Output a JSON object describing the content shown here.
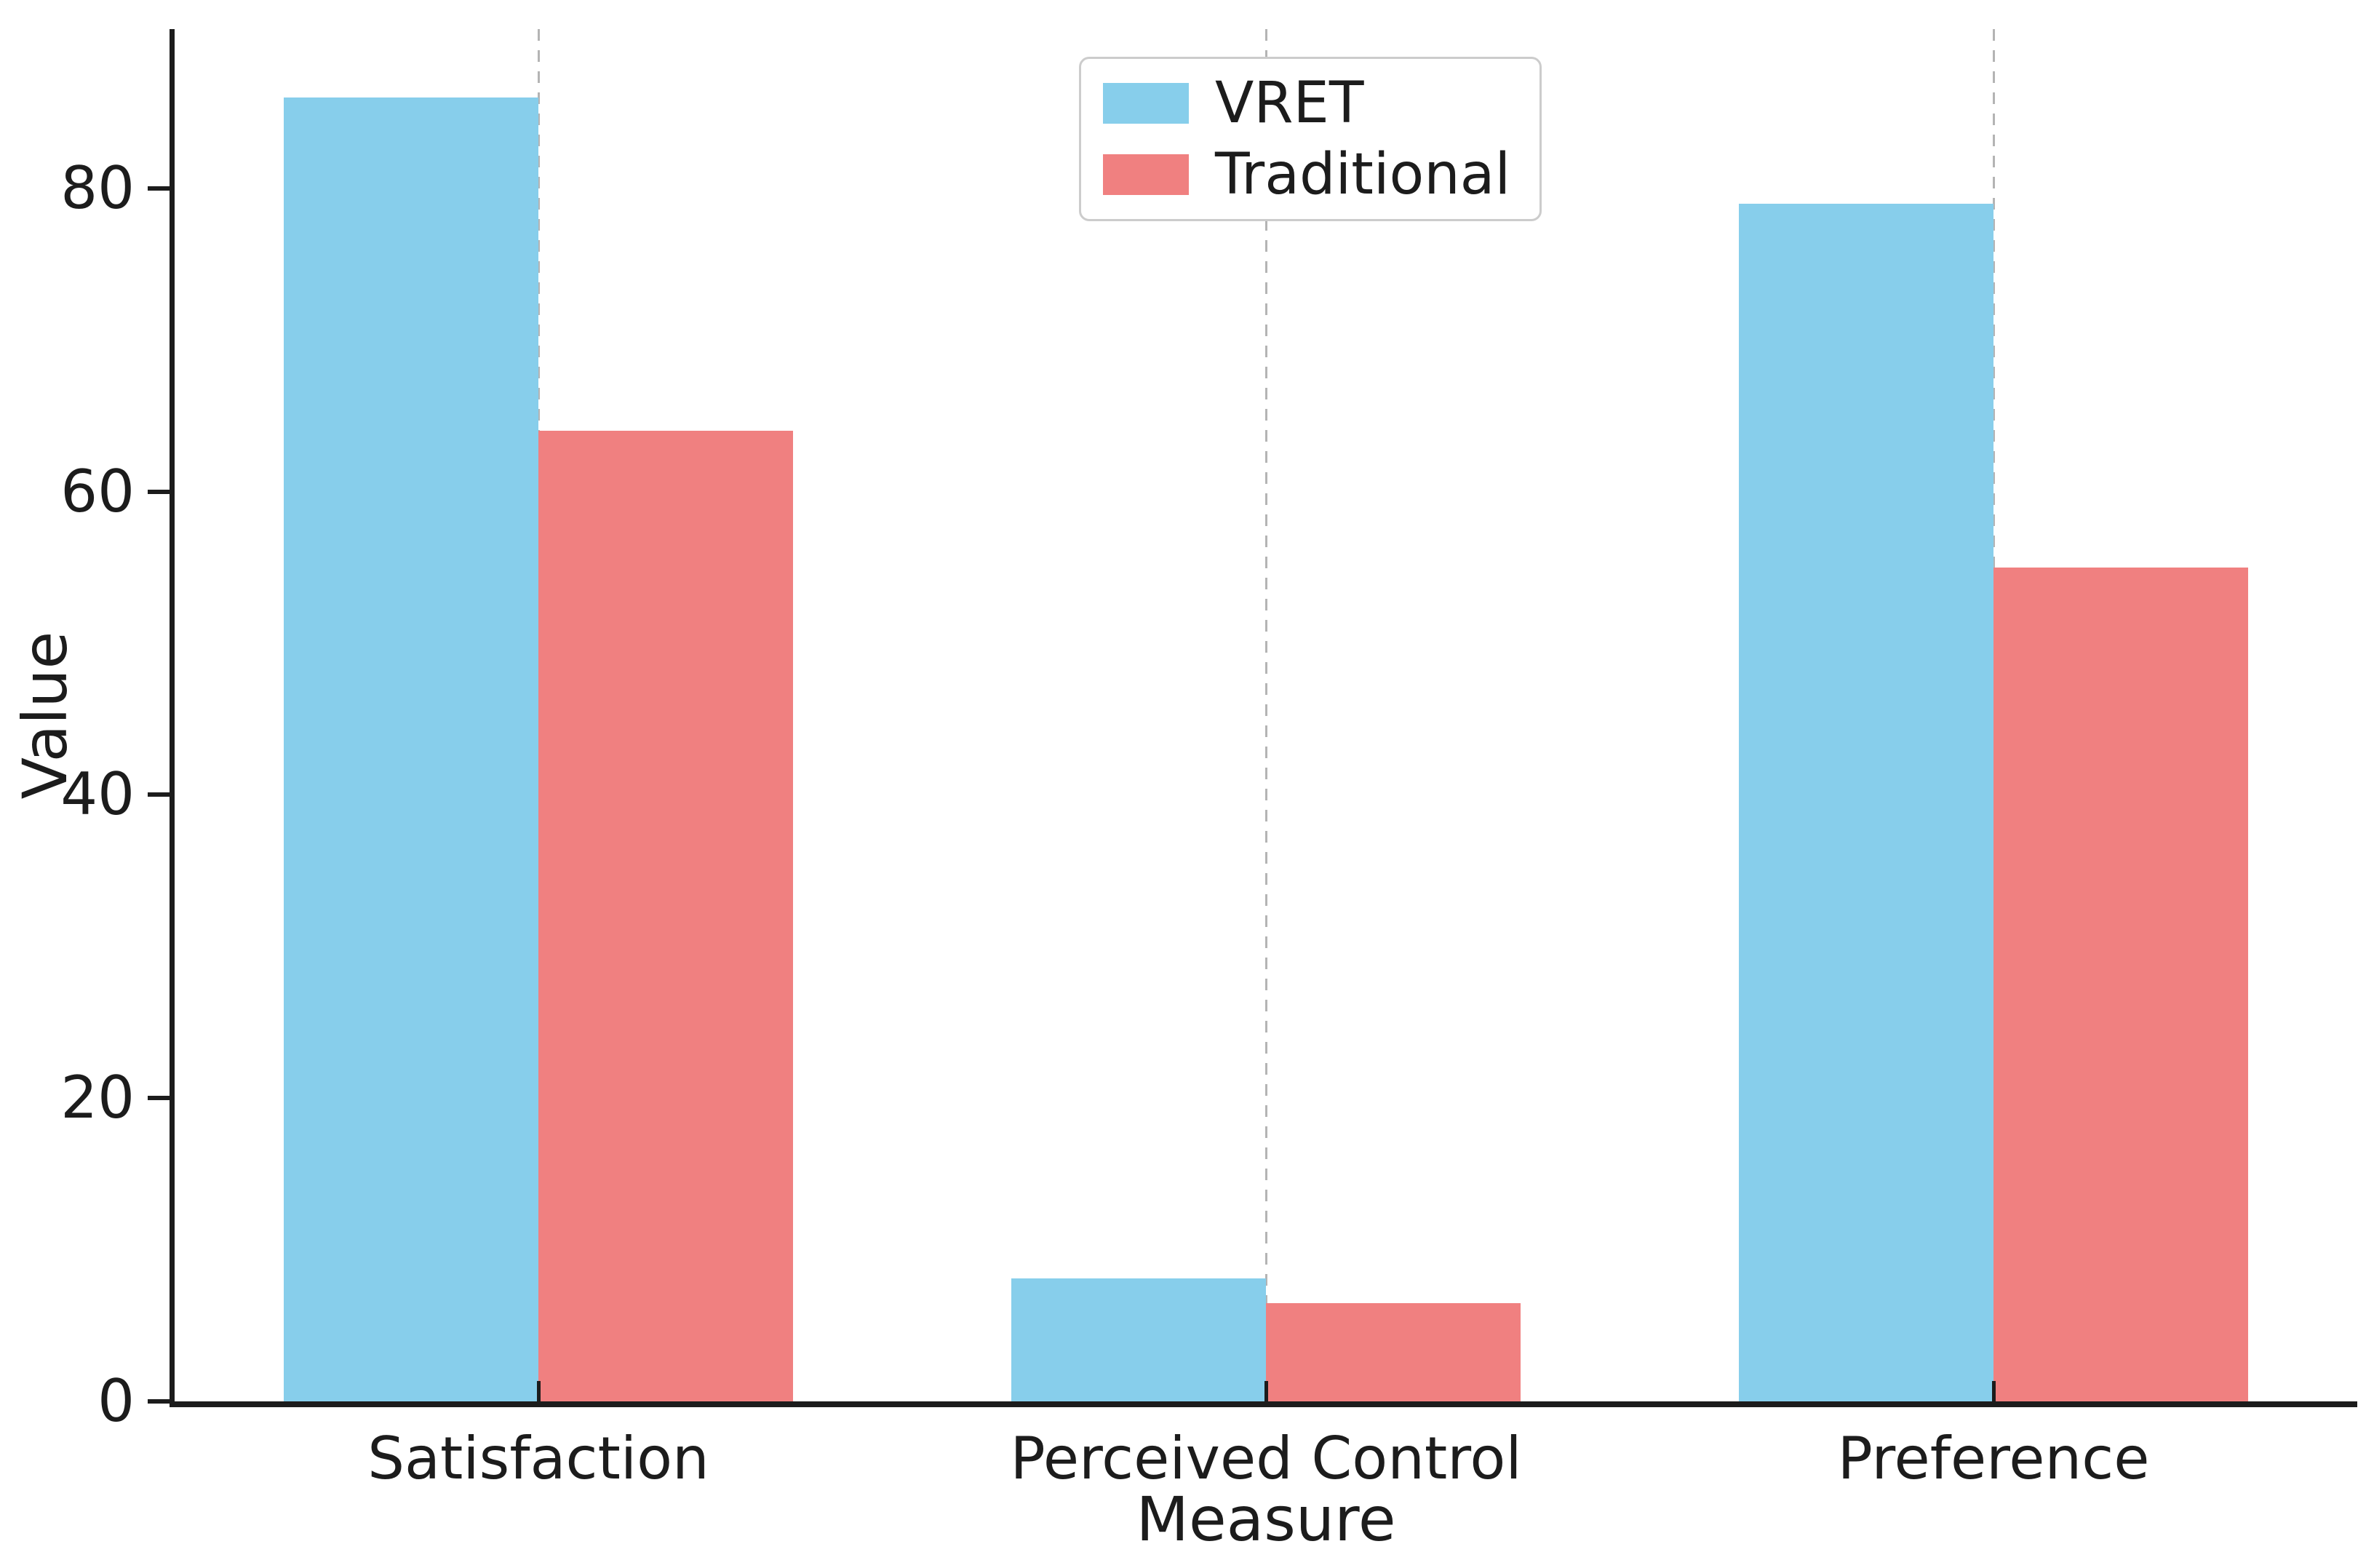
{
  "chart_data": {
    "type": "bar",
    "title": "",
    "xlabel": "Measure",
    "ylabel": "Value",
    "categories": [
      "Satisfaction",
      "Perceived Control",
      "Preference"
    ],
    "series": [
      {
        "name": "VRET",
        "color": "#87CEEB",
        "values": [
          86,
          8.1,
          79
        ]
      },
      {
        "name": "Traditional",
        "color": "#F08080",
        "values": [
          64,
          6.5,
          55
        ]
      }
    ],
    "y_ticks": [
      "0",
      "20",
      "40",
      "60",
      "80"
    ],
    "ylim": [
      0,
      90.5
    ],
    "grid": "vertical dashed gridline at each category center",
    "legend_position": "upper center",
    "axis_color": "#1c1c1c",
    "gridline_color": "#b4b4b4"
  }
}
